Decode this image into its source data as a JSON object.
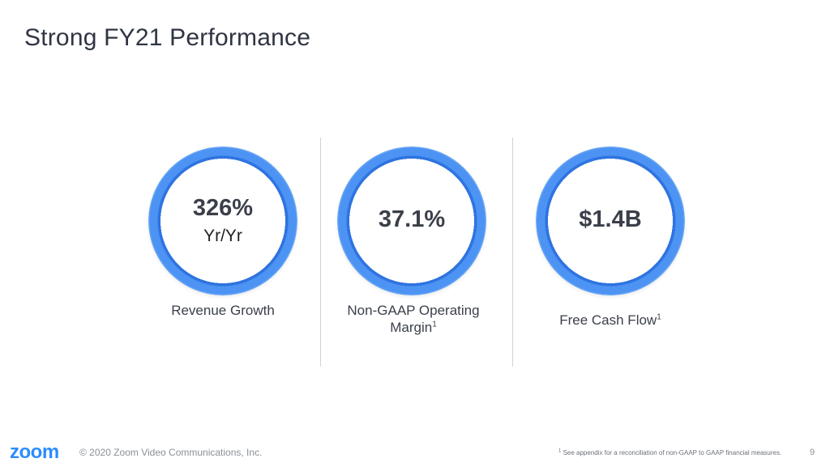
{
  "slide": {
    "title": "Strong FY21 Performance"
  },
  "metrics": [
    {
      "value": "326%",
      "sub": "Yr/Yr",
      "caption": "Revenue Growth",
      "caption_sup": ""
    },
    {
      "value": "37.1%",
      "sub": "",
      "caption": "Non-GAAP Operating Margin",
      "caption_sup": "1"
    },
    {
      "value": "$1.4B",
      "sub": "",
      "caption": "Free Cash Flow",
      "caption_sup": "1"
    }
  ],
  "footer": {
    "logo": "zoom",
    "copyright": "© 2020 Zoom Video Communications, Inc.",
    "footnote_sup": "1",
    "footnote": "See appendix for a reconciliation of non-GAAP to GAAP financial measures.",
    "page_number": "9"
  },
  "colors": {
    "ring": "#4c93f3",
    "brand": "#2d8cff",
    "text": "#3a3f4a"
  }
}
